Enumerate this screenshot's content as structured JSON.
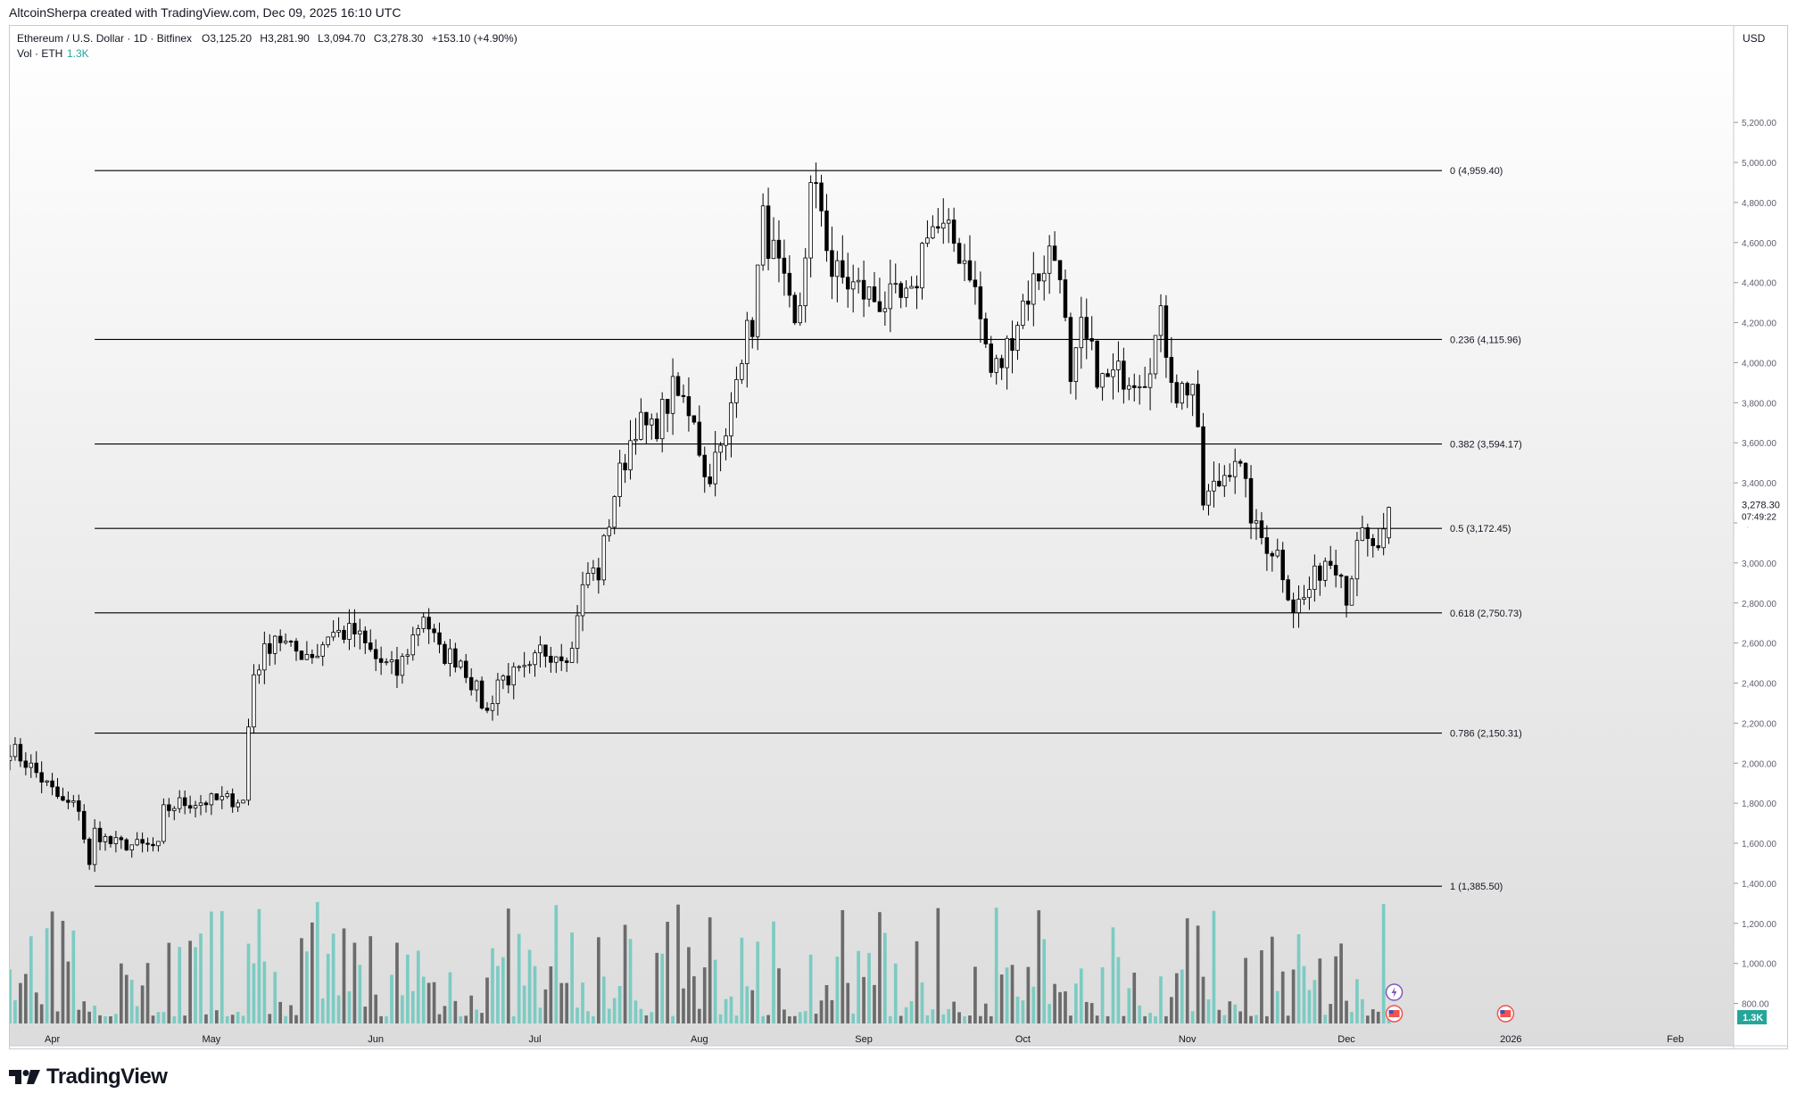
{
  "header": {
    "published_by": "AltcoinSherpa created with TradingView.com, Dec 09, 2025 16:10 UTC"
  },
  "legend": {
    "symbol": "Ethereum / U.S. Dollar · 1D · Bitfinex",
    "open_label": "O",
    "open": "3,125.20",
    "high_label": "H",
    "high": "3,281.90",
    "low_label": "L",
    "low": "3,094.70",
    "close_label": "C",
    "close": "3,278.30",
    "change": "+153.10 (+4.90%)",
    "vol_label": "Vol · ETH",
    "vol_value": "1.3K"
  },
  "footer": {
    "brand": "TradingView"
  },
  "colors": {
    "up_body": "#ffffff",
    "down_body": "#000000",
    "wick": "#000000",
    "vol_up": "#7ccbc2",
    "vol_down": "#6b6b6b",
    "fib_line": "#000000",
    "vol_badge": "#26a69a",
    "bg_top": "#ffffff",
    "bg_bottom": "#dcdcdc"
  },
  "icons": [
    "flash-event-icon",
    "us-flag-event-icon"
  ],
  "chart_data": {
    "type": "candlestick",
    "currency": "USD",
    "y_ticks": [
      "800.00",
      "1,000.00",
      "1,200.00",
      "1,400.00",
      "1,600.00",
      "1,800.00",
      "2,000.00",
      "2,200.00",
      "2,400.00",
      "2,600.00",
      "2,800.00",
      "3,000.00",
      "3,200.00",
      "3,400.00",
      "3,600.00",
      "3,800.00",
      "4,000.00",
      "4,200.00",
      "4,400.00",
      "4,600.00",
      "4,800.00",
      "5,000.00",
      "5,200.00"
    ],
    "y_tick_values": [
      800,
      1000,
      1200,
      1400,
      1600,
      1800,
      2000,
      2200,
      2400,
      2600,
      2800,
      3000,
      3200,
      3400,
      3600,
      3800,
      4000,
      4200,
      4400,
      4600,
      4800,
      5000,
      5200
    ],
    "ylim": [
      700,
      5300
    ],
    "x_labels": [
      {
        "label": "Apr",
        "date": "2025-04-01"
      },
      {
        "label": "May",
        "date": "2025-05-01"
      },
      {
        "label": "Jun",
        "date": "2025-06-01"
      },
      {
        "label": "Jul",
        "date": "2025-07-01"
      },
      {
        "label": "Aug",
        "date": "2025-08-01"
      },
      {
        "label": "Sep",
        "date": "2025-09-01"
      },
      {
        "label": "Oct",
        "date": "2025-10-01"
      },
      {
        "label": "Nov",
        "date": "2025-11-01"
      },
      {
        "label": "Dec",
        "date": "2025-12-01"
      },
      {
        "label": "2026",
        "date": "2026-01-01"
      },
      {
        "label": "Feb",
        "date": "2026-02-01"
      }
    ],
    "x_range": [
      "2025-03-24",
      "2026-02-12"
    ],
    "last_price": "3,278.30",
    "last_price_value": 3278.3,
    "countdown": "07:49:22",
    "volume_last": "1.3K",
    "fib_levels": [
      {
        "label": "0 (4,959.40)",
        "value": 4959.4
      },
      {
        "label": "0.236 (4,115.96)",
        "value": 4115.96
      },
      {
        "label": "0.382 (3,594.17)",
        "value": 3594.17
      },
      {
        "label": "0.5 (3,172.45)",
        "value": 3172.45
      },
      {
        "label": "0.618 (2,750.73)",
        "value": 2750.73
      },
      {
        "label": "0.786 (2,150.31)",
        "value": 2150.31
      },
      {
        "label": "1 (1,385.50)",
        "value": 1385.5
      }
    ],
    "fib_start_date": "2025-04-09",
    "fib_end_date": "2025-12-19",
    "event_dates": [
      "2025-12-10",
      "2025-12-10",
      "2025-12-31"
    ],
    "anchors": [
      [
        "2025-03-24",
        2080
      ],
      [
        "2025-03-28",
        1980
      ],
      [
        "2025-04-03",
        1800
      ],
      [
        "2025-04-06",
        1780
      ],
      [
        "2025-04-08",
        1480
      ],
      [
        "2025-04-09",
        1660
      ],
      [
        "2025-04-12",
        1600
      ],
      [
        "2025-04-21",
        1580
      ],
      [
        "2025-04-22",
        1760
      ],
      [
        "2025-04-25",
        1800
      ],
      [
        "2025-05-06",
        1820
      ],
      [
        "2025-05-07",
        1810
      ],
      [
        "2025-05-08",
        2180
      ],
      [
        "2025-05-09",
        2450
      ],
      [
        "2025-05-13",
        2650
      ],
      [
        "2025-05-16",
        2560
      ],
      [
        "2025-05-21",
        2550
      ],
      [
        "2025-05-23",
        2650
      ],
      [
        "2025-05-28",
        2650
      ],
      [
        "2025-06-01",
        2520
      ],
      [
        "2025-06-05",
        2450
      ],
      [
        "2025-06-10",
        2750
      ],
      [
        "2025-06-13",
        2550
      ],
      [
        "2025-06-17",
        2520
      ],
      [
        "2025-06-22",
        2250
      ],
      [
        "2025-06-24",
        2420
      ],
      [
        "2025-06-30",
        2450
      ],
      [
        "2025-07-02",
        2560
      ],
      [
        "2025-07-08",
        2560
      ],
      [
        "2025-07-09",
        2770
      ],
      [
        "2025-07-11",
        2950
      ],
      [
        "2025-07-13",
        2950
      ],
      [
        "2025-07-16",
        3350
      ],
      [
        "2025-07-20",
        3700
      ],
      [
        "2025-07-23",
        3650
      ],
      [
        "2025-07-27",
        3850
      ],
      [
        "2025-07-31",
        3750
      ],
      [
        "2025-08-02",
        3420
      ],
      [
        "2025-08-06",
        3600
      ],
      [
        "2025-08-08",
        4000
      ],
      [
        "2025-08-11",
        4200
      ],
      [
        "2025-08-13",
        4700
      ],
      [
        "2025-08-16",
        4450
      ],
      [
        "2025-08-19",
        4150
      ],
      [
        "2025-08-20",
        4300
      ],
      [
        "2025-08-22",
        4850
      ],
      [
        "2025-08-24",
        4780
      ],
      [
        "2025-08-26",
        4450
      ],
      [
        "2025-08-30",
        4380
      ],
      [
        "2025-09-03",
        4320
      ],
      [
        "2025-09-06",
        4300
      ],
      [
        "2025-09-10",
        4300
      ],
      [
        "2025-09-13",
        4700
      ],
      [
        "2025-09-18",
        4600
      ],
      [
        "2025-09-21",
        4480
      ],
      [
        "2025-09-25",
        3950
      ],
      [
        "2025-09-27",
        4000
      ],
      [
        "2025-10-01",
        4300
      ],
      [
        "2025-10-06",
        4550
      ],
      [
        "2025-10-08",
        4500
      ],
      [
        "2025-10-10",
        3850
      ],
      [
        "2025-10-12",
        4150
      ],
      [
        "2025-10-16",
        3900
      ],
      [
        "2025-10-20",
        3950
      ],
      [
        "2025-10-24",
        3950
      ],
      [
        "2025-10-27",
        4200
      ],
      [
        "2025-10-30",
        3850
      ],
      [
        "2025-11-02",
        3900
      ],
      [
        "2025-11-04",
        3300
      ],
      [
        "2025-11-07",
        3400
      ],
      [
        "2025-11-10",
        3550
      ],
      [
        "2025-11-14",
        3150
      ],
      [
        "2025-11-18",
        3050
      ],
      [
        "2025-11-21",
        2780
      ],
      [
        "2025-11-23",
        2820
      ],
      [
        "2025-11-27",
        3020
      ],
      [
        "2025-11-30",
        3000
      ],
      [
        "2025-12-01",
        2800
      ],
      [
        "2025-12-03",
        3150
      ],
      [
        "2025-12-06",
        3050
      ],
      [
        "2025-12-08",
        3120
      ],
      [
        "2025-12-09",
        3278
      ]
    ]
  }
}
